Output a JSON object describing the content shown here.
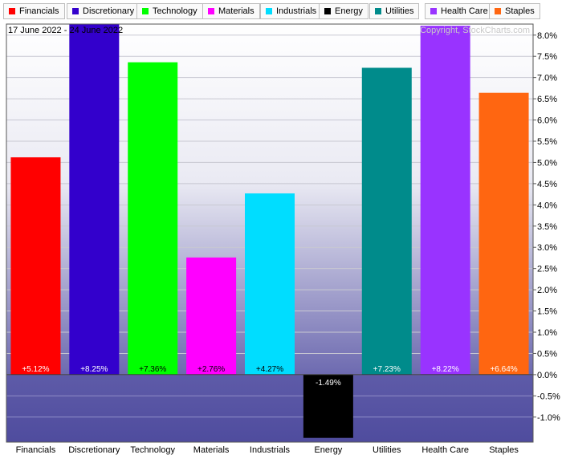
{
  "chart_data": {
    "type": "bar",
    "date_range": "17 June 2022 - 24 June 2022",
    "copyright": "Copyright, StockCharts.com",
    "categories": [
      "Financials",
      "Discretionary",
      "Technology",
      "Materials",
      "Industrials",
      "Energy",
      "Utilities",
      "Health Care",
      "Staples"
    ],
    "values": [
      5.12,
      8.25,
      7.36,
      2.76,
      4.27,
      -1.49,
      7.23,
      8.22,
      6.64
    ],
    "value_labels": [
      "+5.12%",
      "+8.25%",
      "+7.36%",
      "+2.76%",
      "+4.27%",
      "-1.49%",
      "+7.23%",
      "+8.22%",
      "+6.64%"
    ],
    "colors": [
      "#ff0000",
      "#3300cc",
      "#00ff00",
      "#ff00ff",
      "#00ddff",
      "#000000",
      "#008b8b",
      "#9933ff",
      "#ff6611"
    ],
    "label_colors": [
      "#ffffff",
      "#ffffff",
      "#000000",
      "#000000",
      "#000000",
      "#ffffff",
      "#ffffff",
      "#ffffff",
      "#ffffff"
    ],
    "yticks": [
      "8.0%",
      "7.5%",
      "7.0%",
      "6.5%",
      "6.0%",
      "5.5%",
      "5.0%",
      "4.5%",
      "4.0%",
      "3.5%",
      "3.0%",
      "2.5%",
      "2.0%",
      "1.5%",
      "1.0%",
      "0.5%",
      "0.0%",
      "-0.5%",
      "-1.0%"
    ],
    "ytick_values": [
      8.0,
      7.5,
      7.0,
      6.5,
      6.0,
      5.5,
      5.0,
      4.5,
      4.0,
      3.5,
      3.0,
      2.5,
      2.0,
      1.5,
      1.0,
      0.5,
      0.0,
      -0.5,
      -1.0
    ],
    "ylim": [
      -1.59,
      8.26
    ],
    "grid": true,
    "legend_position": "top"
  }
}
